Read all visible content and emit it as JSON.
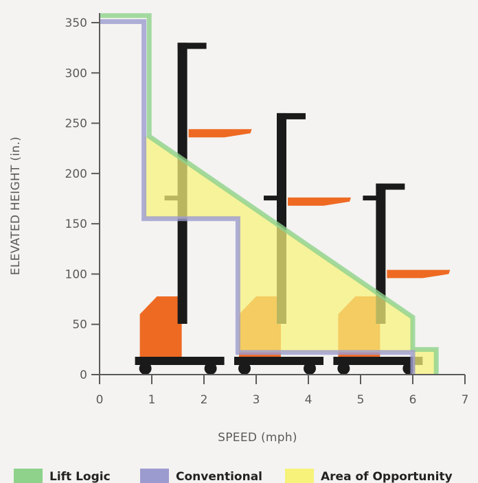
{
  "chart_data": {
    "type": "line",
    "xlabel": "SPEED (mph)",
    "ylabel": "ELEVATED HEIGHT (in.)",
    "xlim": [
      0,
      7
    ],
    "ylim": [
      0,
      350
    ],
    "x_ticks": [
      "0",
      "1",
      "2",
      "3",
      "4",
      "5",
      "6",
      "7"
    ],
    "y_ticks": [
      "0",
      "50",
      "100",
      "150",
      "200",
      "250",
      "300",
      "350"
    ],
    "grid": false,
    "legend_position": "bottom",
    "series": [
      {
        "name": "Lift Logic",
        "color": "#8ed28c",
        "x": [
          0,
          0.95,
          0.95,
          6.0,
          6.0,
          6.45,
          6.45
        ],
        "y": [
          357,
          357,
          237,
          57,
          25,
          25,
          0
        ]
      },
      {
        "name": "Conventional",
        "color": "#9c9bd0",
        "x": [
          0,
          0.85,
          0.85,
          2.65,
          2.65,
          6.0,
          6.0
        ],
        "y": [
          351,
          351,
          155,
          155,
          22,
          22,
          0
        ]
      },
      {
        "name": "Area of Opportunity",
        "color": "#f6f27a",
        "type": "area",
        "x": [
          0.85,
          0.95,
          6.0,
          6.0,
          6.45,
          6.45,
          6.0,
          6.0,
          2.65,
          2.65,
          0.85
        ],
        "y": [
          237,
          237,
          57,
          25,
          25,
          0,
          0,
          22,
          22,
          155,
          155
        ]
      }
    ]
  },
  "legend": [
    {
      "label": "Lift Logic",
      "color": "#8ed28c"
    },
    {
      "label": "Conventional",
      "color": "#9c9bd0"
    },
    {
      "label": "Area of Opportunity",
      "color": "#f6f27a"
    }
  ],
  "illustration": {
    "truck_color": "#ee6a23",
    "mast_color": "#1a1a1a",
    "trucks_at_speed": [
      1.6,
      3.5,
      5.4
    ],
    "truck_mast_heights": [
      330,
      260,
      190
    ],
    "truck_fork_heights": [
      240,
      172,
      100
    ]
  }
}
